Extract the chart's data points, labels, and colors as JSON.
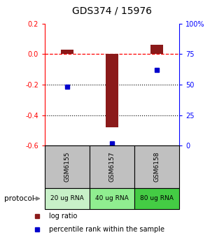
{
  "title": "GDS374 / 15976",
  "samples": [
    "GSM6155",
    "GSM6157",
    "GSM6158"
  ],
  "protocols": [
    "20 ug RNA",
    "40 ug RNA",
    "80 ug RNA"
  ],
  "log_ratios": [
    0.03,
    -0.48,
    0.06
  ],
  "percentile_ranks": [
    48,
    2,
    62
  ],
  "ylim_left": [
    -0.6,
    0.2
  ],
  "ylim_right": [
    0,
    100
  ],
  "yticks_left": [
    0.2,
    0.0,
    -0.2,
    -0.4,
    -0.6
  ],
  "yticks_right": [
    100,
    75,
    50,
    25,
    0
  ],
  "yticks_right_labels": [
    "100%",
    "75",
    "50",
    "25",
    "0"
  ],
  "bar_width": 0.28,
  "red_color": "#8B1A1A",
  "blue_color": "#0000CC",
  "green_bg_colors": [
    "#C8F0C8",
    "#90EE90",
    "#44CC44"
  ],
  "gray_bg": "#C0C0C0",
  "legend_red_label": "log ratio",
  "legend_blue_label": "percentile rank within the sample",
  "protocol_label": "protocol"
}
